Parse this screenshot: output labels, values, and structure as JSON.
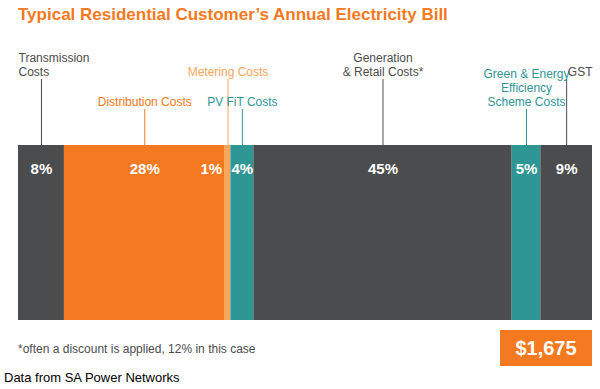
{
  "chart_data": {
    "type": "bar",
    "orientation": "horizontal",
    "stacked": true,
    "data_labels": true,
    "tick_labels": false,
    "title": "Typical Residential Customer’s Annual Electricity Bill",
    "categories": [
      null
    ],
    "xlim": [
      0,
      100
    ],
    "series": [
      {
        "name": "Transmission\nCosts",
        "color": "#4b4c4e",
        "values": [
          8
        ],
        "value_labels": [
          "8%"
        ]
      },
      {
        "name": "Distribution Costs",
        "color": "#f47920",
        "values": [
          28
        ],
        "value_labels": [
          "28%"
        ]
      },
      {
        "name": "Metering Costs",
        "color": "#f9a65a",
        "values": [
          1
        ],
        "value_labels": [
          "1%"
        ]
      },
      {
        "name": "PV FiT Costs",
        "color": "#2f9696",
        "values": [
          4
        ],
        "value_labels": [
          "4%"
        ]
      },
      {
        "name": "Generation\n& Retail Costs*",
        "color": "#4b4c4e",
        "values": [
          45
        ],
        "value_labels": [
          "45%"
        ]
      },
      {
        "name": "Green & Energy\nEfficiency\nScheme Costs",
        "color": "#2f9696",
        "values": [
          5
        ],
        "value_labels": [
          "5%"
        ]
      },
      {
        "name": "GST",
        "color": "#4b4c4e",
        "values": [
          9
        ],
        "value_labels": [
          "9%"
        ]
      }
    ],
    "total_label": "$1,675",
    "footnote": "*often a discount is applied, 12% in this case",
    "source": "Data from SA Power Networks"
  }
}
